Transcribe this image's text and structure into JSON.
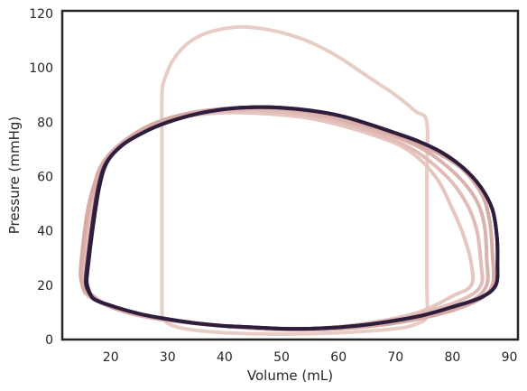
{
  "chart_data": {
    "type": "line",
    "title": "",
    "xlabel": "Volume (mL)",
    "ylabel": "Pressure (mmHg)",
    "xlim": [
      11.5,
      91.5
    ],
    "ylim": [
      0,
      121
    ],
    "x_ticks": [
      20,
      30,
      40,
      50,
      60,
      70,
      80,
      90
    ],
    "y_ticks": [
      0,
      20,
      40,
      60,
      80,
      100,
      120
    ],
    "grid": false,
    "legend": "none",
    "colors": [
      "#e8cdc7",
      "#e6c6c1",
      "#e2bdb8",
      "#dcb2ae",
      "#d7aaa6",
      "#4a2748",
      "#2d1e3e"
    ],
    "series": [
      {
        "values": [
          [
            29,
            9
          ],
          [
            29,
            40
          ],
          [
            29,
            70
          ],
          [
            29,
            90
          ],
          [
            29.5,
            96
          ],
          [
            31,
            103
          ],
          [
            33.5,
            109
          ],
          [
            37,
            113
          ],
          [
            42,
            115
          ],
          [
            46,
            114.6
          ],
          [
            50,
            113
          ],
          [
            55,
            109.5
          ],
          [
            60,
            104
          ],
          [
            65,
            97
          ],
          [
            70,
            90
          ],
          [
            73.5,
            84
          ],
          [
            75.5,
            80
          ],
          [
            75.5,
            60
          ],
          [
            75.5,
            40
          ],
          [
            75.5,
            20
          ],
          [
            75.5,
            9
          ],
          [
            74,
            6
          ],
          [
            70,
            4
          ],
          [
            60,
            2.5
          ],
          [
            50,
            2
          ],
          [
            40,
            2.5
          ],
          [
            33,
            4
          ],
          [
            30,
            6
          ],
          [
            29,
            9
          ]
        ]
      },
      {
        "values": [
          [
            16,
            16
          ],
          [
            15.6,
            20
          ],
          [
            15.8,
            30
          ],
          [
            16.5,
            42
          ],
          [
            17.5,
            55
          ],
          [
            19,
            65
          ],
          [
            22,
            72
          ],
          [
            27,
            78
          ],
          [
            33,
            82
          ],
          [
            40,
            83.5
          ],
          [
            48,
            83
          ],
          [
            56,
            81
          ],
          [
            65,
            76
          ],
          [
            72,
            70
          ],
          [
            77,
            60
          ],
          [
            80,
            48
          ],
          [
            82,
            38
          ],
          [
            83.3,
            28
          ],
          [
            83.3,
            20
          ],
          [
            80,
            16
          ],
          [
            74,
            10
          ],
          [
            65,
            6
          ],
          [
            55,
            4
          ],
          [
            45,
            4.5
          ],
          [
            35,
            6
          ],
          [
            26,
            9
          ],
          [
            20,
            12
          ],
          [
            16,
            16
          ]
        ]
      },
      {
        "values": [
          [
            15.5,
            17
          ],
          [
            15,
            22
          ],
          [
            15.4,
            32
          ],
          [
            16.2,
            45
          ],
          [
            17.3,
            56
          ],
          [
            18.8,
            65
          ],
          [
            22,
            72
          ],
          [
            27,
            78
          ],
          [
            33,
            82
          ],
          [
            40,
            84
          ],
          [
            48,
            84
          ],
          [
            56,
            82
          ],
          [
            65,
            77
          ],
          [
            73,
            70
          ],
          [
            79,
            60
          ],
          [
            82.5,
            50
          ],
          [
            84.3,
            40
          ],
          [
            85,
            28
          ],
          [
            85,
            20
          ],
          [
            82,
            15
          ],
          [
            75,
            10
          ],
          [
            66,
            6
          ],
          [
            56,
            4
          ],
          [
            46,
            4.2
          ],
          [
            36,
            5.8
          ],
          [
            27,
            8.5
          ],
          [
            20,
            12
          ],
          [
            15.5,
            17
          ]
        ]
      },
      {
        "values": [
          [
            15.3,
            18
          ],
          [
            14.8,
            23
          ],
          [
            15.2,
            33
          ],
          [
            16,
            46
          ],
          [
            17.2,
            57
          ],
          [
            18.7,
            65
          ],
          [
            22,
            72.5
          ],
          [
            27,
            78.5
          ],
          [
            33,
            82.5
          ],
          [
            40,
            84.5
          ],
          [
            48,
            85
          ],
          [
            56,
            83
          ],
          [
            65,
            78
          ],
          [
            74,
            71
          ],
          [
            80,
            62
          ],
          [
            84,
            52
          ],
          [
            85.6,
            42
          ],
          [
            86,
            30
          ],
          [
            86,
            20
          ],
          [
            83,
            14
          ],
          [
            76,
            9.5
          ],
          [
            67,
            6
          ],
          [
            57,
            4
          ],
          [
            47,
            4
          ],
          [
            37,
            5.5
          ],
          [
            27,
            8
          ],
          [
            20,
            12
          ],
          [
            15.3,
            18
          ]
        ]
      },
      {
        "values": [
          [
            15.2,
            19
          ],
          [
            14.7,
            24
          ],
          [
            15.1,
            34
          ],
          [
            15.9,
            47
          ],
          [
            17.1,
            57
          ],
          [
            18.6,
            65
          ],
          [
            22,
            72.5
          ],
          [
            27,
            79
          ],
          [
            33,
            83
          ],
          [
            40,
            85
          ],
          [
            48,
            85.5
          ],
          [
            56,
            84
          ],
          [
            65,
            79
          ],
          [
            74,
            72
          ],
          [
            81,
            64
          ],
          [
            85,
            54
          ],
          [
            86.5,
            44
          ],
          [
            87,
            32
          ],
          [
            87,
            20
          ],
          [
            84,
            14
          ],
          [
            77,
            9
          ],
          [
            68,
            5.5
          ],
          [
            58,
            3.8
          ],
          [
            48,
            3.8
          ],
          [
            38,
            5.3
          ],
          [
            28,
            7.8
          ],
          [
            20,
            12
          ],
          [
            15.2,
            19
          ]
        ]
      },
      {
        "values": [
          [
            15.8,
            19
          ],
          [
            15.6,
            22
          ],
          [
            16,
            30
          ],
          [
            16.8,
            43
          ],
          [
            17.8,
            56
          ],
          [
            19.2,
            65
          ],
          [
            22,
            71.5
          ],
          [
            26,
            76.5
          ],
          [
            30,
            80
          ],
          [
            35,
            83
          ],
          [
            40,
            84.8
          ],
          [
            45,
            85.5
          ],
          [
            50,
            85.3
          ],
          [
            55,
            84.3
          ],
          [
            60,
            82.5
          ],
          [
            65,
            79.5
          ],
          [
            70,
            76
          ],
          [
            74,
            73
          ],
          [
            78,
            69
          ],
          [
            82,
            63
          ],
          [
            85,
            56
          ],
          [
            87,
            48
          ],
          [
            87.8,
            38
          ],
          [
            87.9,
            28
          ],
          [
            87.6,
            20
          ],
          [
            85,
            15.5
          ],
          [
            80,
            12
          ],
          [
            75,
            9
          ],
          [
            70,
            7
          ],
          [
            65,
            5.5
          ],
          [
            60,
            4.5
          ],
          [
            55,
            4
          ],
          [
            50,
            4
          ],
          [
            45,
            4.5
          ],
          [
            40,
            5
          ],
          [
            35,
            6
          ],
          [
            30,
            7.5
          ],
          [
            25,
            9.5
          ],
          [
            20,
            12.5
          ],
          [
            17,
            15
          ],
          [
            15.8,
            19
          ]
        ]
      },
      {
        "values": [
          [
            16,
            19
          ],
          [
            15.8,
            22
          ],
          [
            16.2,
            30
          ],
          [
            17,
            43
          ],
          [
            18,
            56
          ],
          [
            19.3,
            65
          ],
          [
            22,
            71.5
          ],
          [
            26,
            76.5
          ],
          [
            30,
            80
          ],
          [
            35,
            83
          ],
          [
            40,
            84.8
          ],
          [
            45,
            85.5
          ],
          [
            50,
            85.3
          ],
          [
            55,
            84.3
          ],
          [
            60,
            82.5
          ],
          [
            65,
            79.5
          ],
          [
            70,
            76
          ],
          [
            74,
            73
          ],
          [
            78,
            69
          ],
          [
            82,
            63
          ],
          [
            85,
            56
          ],
          [
            87,
            48
          ],
          [
            87.8,
            38
          ],
          [
            87.9,
            28
          ],
          [
            87.6,
            20
          ],
          [
            85,
            15.5
          ],
          [
            80,
            12
          ],
          [
            75,
            9
          ],
          [
            70,
            7
          ],
          [
            65,
            5.5
          ],
          [
            60,
            4.5
          ],
          [
            55,
            4
          ],
          [
            50,
            4
          ],
          [
            45,
            4.5
          ],
          [
            40,
            5
          ],
          [
            35,
            6
          ],
          [
            30,
            7.5
          ],
          [
            25,
            9.5
          ],
          [
            20,
            12.5
          ],
          [
            17,
            15
          ],
          [
            16,
            19
          ]
        ]
      }
    ]
  }
}
